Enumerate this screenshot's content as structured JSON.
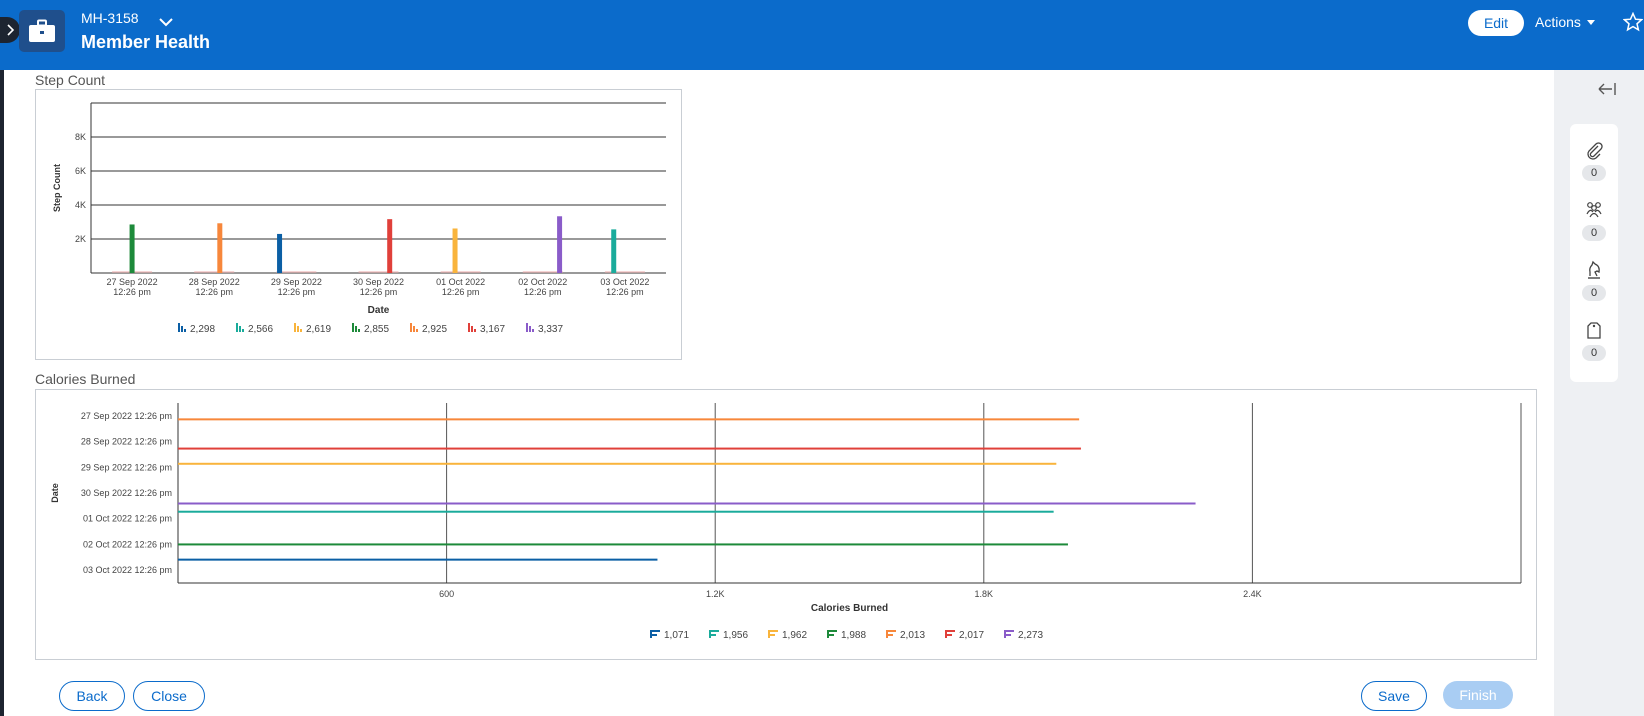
{
  "header": {
    "case_id": "MH-3158",
    "case_title": "Member Health",
    "edit_label": "Edit",
    "actions_label": "Actions",
    "bg_color": "#0b6bcb"
  },
  "sections": {
    "step_count_title": "Step Count",
    "calories_title": "Calories Burned"
  },
  "sidebar": {
    "items": [
      {
        "icon": "paperclip-icon",
        "count": "0"
      },
      {
        "icon": "people-icon",
        "count": "0"
      },
      {
        "icon": "chess-knight-icon",
        "count": "0"
      },
      {
        "icon": "tag-icon",
        "count": "0"
      }
    ]
  },
  "footer": {
    "back_label": "Back",
    "close_label": "Close",
    "save_label": "Save",
    "finish_label": "Finish"
  },
  "chart_data": [
    {
      "type": "bar",
      "xlabel": "Date",
      "ylabel": "Step Count",
      "ylim": [
        0,
        10000
      ],
      "yticks": [
        "2K",
        "4K",
        "6K",
        "8K"
      ],
      "ytick_values": [
        2000,
        4000,
        6000,
        8000
      ],
      "grid": true,
      "legend_position": "bottom",
      "categories": [
        [
          "27 Sep 2022",
          "12:26 pm"
        ],
        [
          "28 Sep 2022",
          "12:26 pm"
        ],
        [
          "29 Sep 2022",
          "12:26 pm"
        ],
        [
          "30 Sep 2022",
          "12:26 pm"
        ],
        [
          "01 Oct 2022",
          "12:26 pm"
        ],
        [
          "02 Oct 2022",
          "12:26 pm"
        ],
        [
          "03 Oct 2022",
          "12:26 pm"
        ]
      ],
      "series": [
        {
          "name": "2,298",
          "color": "#0b5fa5",
          "values": [
            null,
            null,
            2298,
            null,
            null,
            null,
            null
          ]
        },
        {
          "name": "2,566",
          "color": "#1aab9b",
          "values": [
            null,
            null,
            null,
            null,
            null,
            null,
            2566
          ]
        },
        {
          "name": "2,619",
          "color": "#f9b43c",
          "values": [
            null,
            null,
            null,
            null,
            2619,
            null,
            null
          ]
        },
        {
          "name": "2,855",
          "color": "#1d8a3a",
          "values": [
            2855,
            null,
            null,
            null,
            null,
            null,
            null
          ]
        },
        {
          "name": "2,925",
          "color": "#f7873b",
          "values": [
            null,
            2925,
            null,
            null,
            null,
            null,
            null
          ]
        },
        {
          "name": "3,167",
          "color": "#e0403a",
          "values": [
            null,
            null,
            null,
            3167,
            null,
            null,
            null
          ]
        },
        {
          "name": "3,337",
          "color": "#8a5cc9",
          "values": [
            null,
            null,
            null,
            null,
            null,
            3337,
            null
          ]
        }
      ]
    },
    {
      "type": "bar",
      "orientation": "horizontal",
      "xlabel": "Calories Burned",
      "ylabel": "Date",
      "xlim": [
        0,
        3000
      ],
      "xticks": [
        "600",
        "1.2K",
        "1.8K",
        "2.4K"
      ],
      "xtick_values": [
        600,
        1200,
        1800,
        2400
      ],
      "grid": true,
      "legend_position": "bottom",
      "categories": [
        "27 Sep 2022 12:26 pm",
        "28 Sep 2022 12:26 pm",
        "29 Sep 2022 12:26 pm",
        "30 Sep 2022 12:26 pm",
        "01 Oct 2022 12:26 pm",
        "02 Oct 2022 12:26 pm",
        "03 Oct 2022 12:26 pm"
      ],
      "series": [
        {
          "name": "1,071",
          "color": "#0b5fa5",
          "values": [
            null,
            null,
            null,
            null,
            null,
            null,
            1071
          ]
        },
        {
          "name": "1,956",
          "color": "#1aab9b",
          "values": [
            null,
            null,
            null,
            null,
            1956,
            null,
            null
          ]
        },
        {
          "name": "1,962",
          "color": "#f9b43c",
          "values": [
            null,
            null,
            1962,
            null,
            null,
            null,
            null
          ]
        },
        {
          "name": "1,988",
          "color": "#1d8a3a",
          "values": [
            null,
            null,
            null,
            null,
            null,
            1988,
            null
          ]
        },
        {
          "name": "2,013",
          "color": "#f7873b",
          "values": [
            2013,
            null,
            null,
            null,
            null,
            null,
            null
          ]
        },
        {
          "name": "2,017",
          "color": "#e0403a",
          "values": [
            null,
            2017,
            null,
            null,
            null,
            null,
            null
          ]
        },
        {
          "name": "2,273",
          "color": "#8a5cc9",
          "values": [
            null,
            null,
            null,
            2273,
            null,
            null,
            null
          ]
        }
      ]
    }
  ]
}
